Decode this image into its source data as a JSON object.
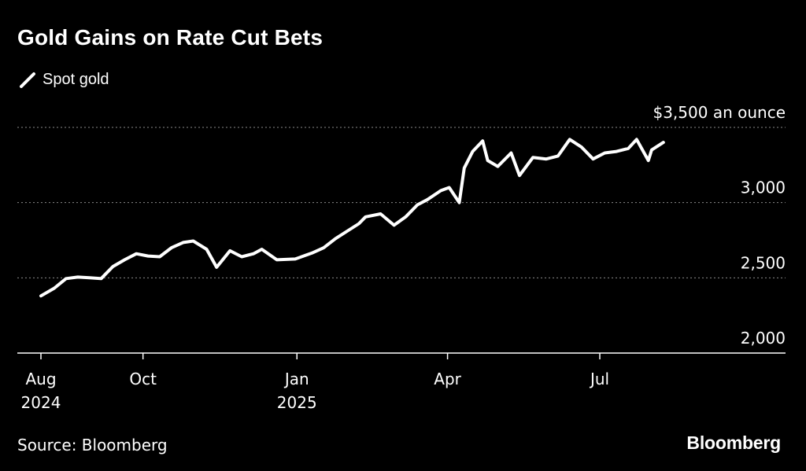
{
  "chart_data": {
    "type": "line",
    "title": "Gold Gains on Rate Cut Bets",
    "series": [
      {
        "name": "Spot gold",
        "color": "#ffffff",
        "x": [
          "2024-08-01",
          "2024-08-09",
          "2024-08-16",
          "2024-08-23",
          "2024-08-30",
          "2024-09-06",
          "2024-09-13",
          "2024-09-20",
          "2024-09-27",
          "2024-10-04",
          "2024-10-11",
          "2024-10-18",
          "2024-10-25",
          "2024-10-31",
          "2024-11-08",
          "2024-11-14",
          "2024-11-22",
          "2024-11-29",
          "2024-12-06",
          "2024-12-11",
          "2024-12-20",
          "2024-12-31",
          "2025-01-10",
          "2025-01-17",
          "2025-01-24",
          "2025-01-31",
          "2025-02-07",
          "2025-02-11",
          "2025-02-20",
          "2025-02-28",
          "2025-03-07",
          "2025-03-14",
          "2025-03-20",
          "2025-03-28",
          "2025-04-02",
          "2025-04-08",
          "2025-04-11",
          "2025-04-16",
          "2025-04-22",
          "2025-04-25",
          "2025-05-01",
          "2025-05-09",
          "2025-05-14",
          "2025-05-22",
          "2025-05-30",
          "2025-06-06",
          "2025-06-13",
          "2025-06-20",
          "2025-06-27",
          "2025-07-04",
          "2025-07-11",
          "2025-07-18",
          "2025-07-23",
          "2025-07-30",
          "2025-08-01",
          "2025-08-08"
        ],
        "values": [
          2380,
          2431,
          2495,
          2505,
          2500,
          2495,
          2575,
          2620,
          2660,
          2645,
          2640,
          2700,
          2735,
          2745,
          2690,
          2570,
          2680,
          2640,
          2660,
          2690,
          2620,
          2625,
          2665,
          2700,
          2760,
          2810,
          2860,
          2905,
          2925,
          2850,
          2905,
          2985,
          3020,
          3080,
          3100,
          3000,
          3230,
          3340,
          3410,
          3280,
          3240,
          3330,
          3180,
          3300,
          3290,
          3310,
          3420,
          3370,
          3290,
          3330,
          3340,
          3360,
          3420,
          3280,
          3350,
          3400
        ]
      }
    ],
    "legend": "top-left",
    "ylabel_unit": "$3,500 an ounce",
    "yticks": [
      {
        "value": 2000,
        "label": "2,000"
      },
      {
        "value": 2500,
        "label": "2,500"
      },
      {
        "value": 3000,
        "label": "3,000"
      },
      {
        "value": 3500,
        "label": "$3,500 an ounce"
      }
    ],
    "xticks": [
      {
        "date": "2024-08-01",
        "label": "Aug",
        "sublabel": "2024"
      },
      {
        "date": "2024-10-01",
        "label": "Oct",
        "sublabel": ""
      },
      {
        "date": "2025-01-01",
        "label": "Jan",
        "sublabel": "2025"
      },
      {
        "date": "2025-04-01",
        "label": "Apr",
        "sublabel": ""
      },
      {
        "date": "2025-07-01",
        "label": "Jul",
        "sublabel": ""
      }
    ],
    "xlim": [
      "2024-08-01",
      "2025-10-20"
    ],
    "ylim": [
      2000,
      3500
    ],
    "grid": true
  },
  "legend_label": "Spot gold",
  "source": "Source: Bloomberg",
  "brand": "Bloomberg"
}
